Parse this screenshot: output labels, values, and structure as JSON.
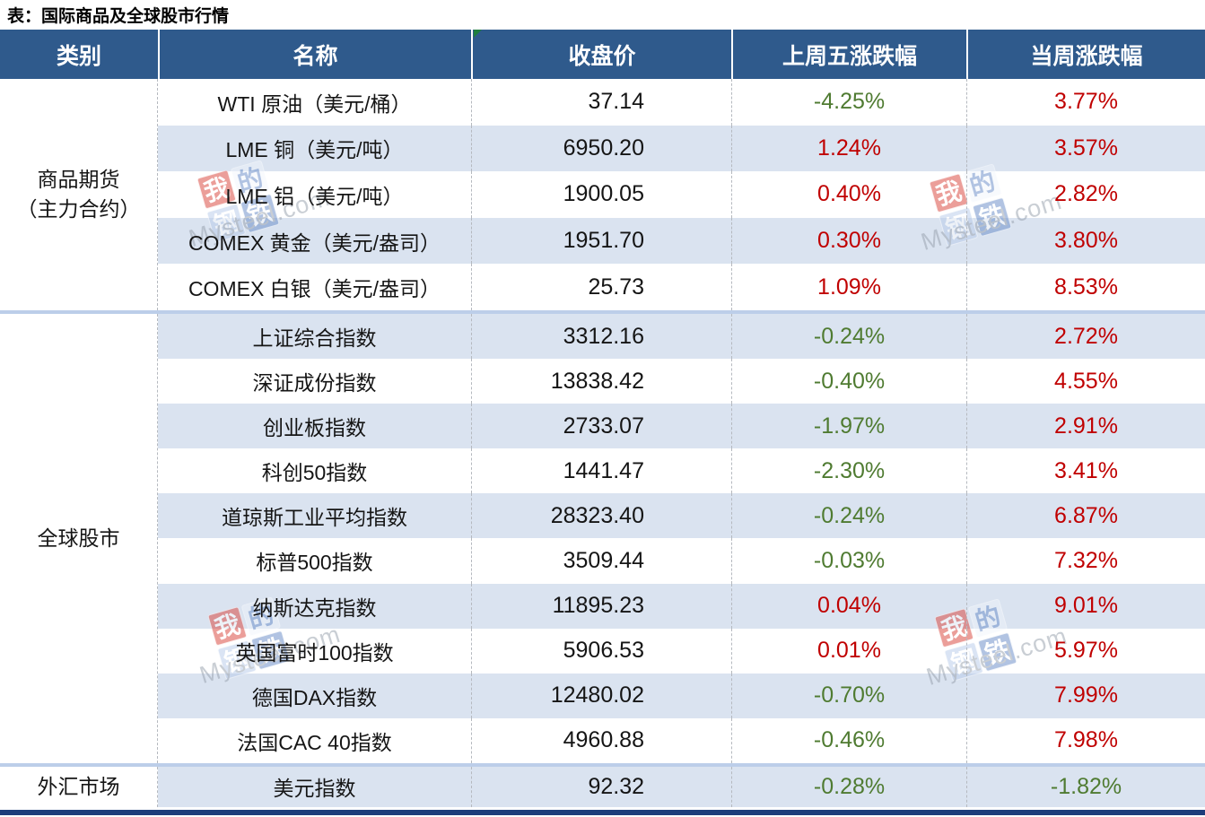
{
  "title": "表：国际商品及全球股市行情",
  "chart_data": {
    "type": "table",
    "title": "表：国际商品及全球股市行情",
    "columns": [
      "类别",
      "名称",
      "收盘价",
      "上周五涨跌幅",
      "当周涨跌幅"
    ],
    "groups": [
      {
        "category": "商品期货（主力合约）",
        "category_lines": [
          "商品期货",
          "（主力合约）"
        ],
        "rows": [
          {
            "name": "WTI 原油（美元/桶）",
            "close": "37.14",
            "last_friday": "-4.25%",
            "week": "3.77%"
          },
          {
            "name": "LME 铜（美元/吨）",
            "close": "6950.20",
            "last_friday": "1.24%",
            "week": "3.57%"
          },
          {
            "name": "LME 铝（美元/吨）",
            "close": "1900.05",
            "last_friday": "0.40%",
            "week": "2.82%"
          },
          {
            "name": "COMEX 黄金（美元/盎司）",
            "close": "1951.70",
            "last_friday": "0.30%",
            "week": "3.80%"
          },
          {
            "name": "COMEX 白银（美元/盎司）",
            "close": "25.73",
            "last_friday": "1.09%",
            "week": "8.53%"
          }
        ]
      },
      {
        "category": "全球股市",
        "category_lines": [
          "全球股市"
        ],
        "rows": [
          {
            "name": "上证综合指数",
            "close": "3312.16",
            "last_friday": "-0.24%",
            "week": "2.72%"
          },
          {
            "name": "深证成份指数",
            "close": "13838.42",
            "last_friday": "-0.40%",
            "week": "4.55%"
          },
          {
            "name": "创业板指数",
            "close": "2733.07",
            "last_friday": "-1.97%",
            "week": "2.91%"
          },
          {
            "name": "科创50指数",
            "close": "1441.47",
            "last_friday": "-2.30%",
            "week": "3.41%"
          },
          {
            "name": "道琼斯工业平均指数",
            "close": "28323.40",
            "last_friday": "-0.24%",
            "week": "6.87%"
          },
          {
            "name": "标普500指数",
            "close": "3509.44",
            "last_friday": "-0.03%",
            "week": "7.32%"
          },
          {
            "name": "纳斯达克指数",
            "close": "11895.23",
            "last_friday": "0.04%",
            "week": "9.01%"
          },
          {
            "name": "英国富时100指数",
            "close": "5906.53",
            "last_friday": "0.01%",
            "week": "5.97%"
          },
          {
            "name": "德国DAX指数",
            "close": "12480.02",
            "last_friday": "-0.70%",
            "week": "7.99%"
          },
          {
            "name": "法国CAC 40指数",
            "close": "4960.88",
            "last_friday": "-0.46%",
            "week": "7.98%"
          }
        ]
      },
      {
        "category": "外汇市场",
        "category_lines": [
          "外汇市场"
        ],
        "rows": [
          {
            "name": "美元指数",
            "close": "92.32",
            "last_friday": "-0.28%",
            "week": "-1.82%"
          }
        ]
      }
    ]
  },
  "watermark": {
    "tiles": [
      "我",
      "的",
      "钢",
      "铁"
    ],
    "text": "Mysteel.com"
  },
  "colors": {
    "header_bg": "#2F5A8C",
    "bottom_bar": "#1E3D7B",
    "row_alt": "#DAE3F0",
    "group_separator": "#BCCEE9",
    "rise_red": "#C00000",
    "fall_green": "#4F7B31",
    "watermark_red": "#D9463E",
    "watermark_blue": "#6A8EC9"
  }
}
